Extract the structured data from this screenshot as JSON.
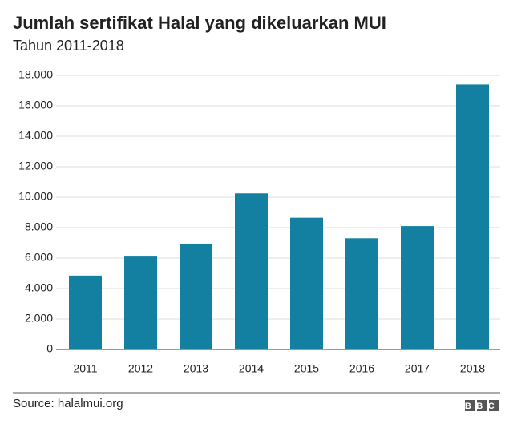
{
  "chart_data": {
    "type": "bar",
    "title": "Jumlah sertifikat Halal yang dikeluarkan MUI",
    "subtitle": "Tahun 2011-2018",
    "categories": [
      "2011",
      "2012",
      "2013",
      "2014",
      "2015",
      "2016",
      "2017",
      "2018"
    ],
    "values": [
      4850,
      6100,
      6950,
      10250,
      8650,
      7300,
      8100,
      17400
    ],
    "color": "#1380a1",
    "ylim": [
      0,
      18000
    ],
    "yticks": [
      0,
      {
        "value": 2000,
        "label": "2.000"
      },
      {
        "value": 4000,
        "label": "4.000"
      },
      {
        "value": 6000,
        "label": "6.000"
      },
      {
        "value": 8000,
        "label": "8.000"
      },
      {
        "value": 10000,
        "label": "10.000"
      },
      {
        "value": 12000,
        "label": "12.000"
      },
      {
        "value": 14000,
        "label": "14.000"
      },
      {
        "value": 16000,
        "label": "16.000"
      },
      {
        "value": 18000,
        "label": "18.000"
      }
    ],
    "grid": true,
    "source": "Source: halalmui.org",
    "logo": "BBC"
  }
}
